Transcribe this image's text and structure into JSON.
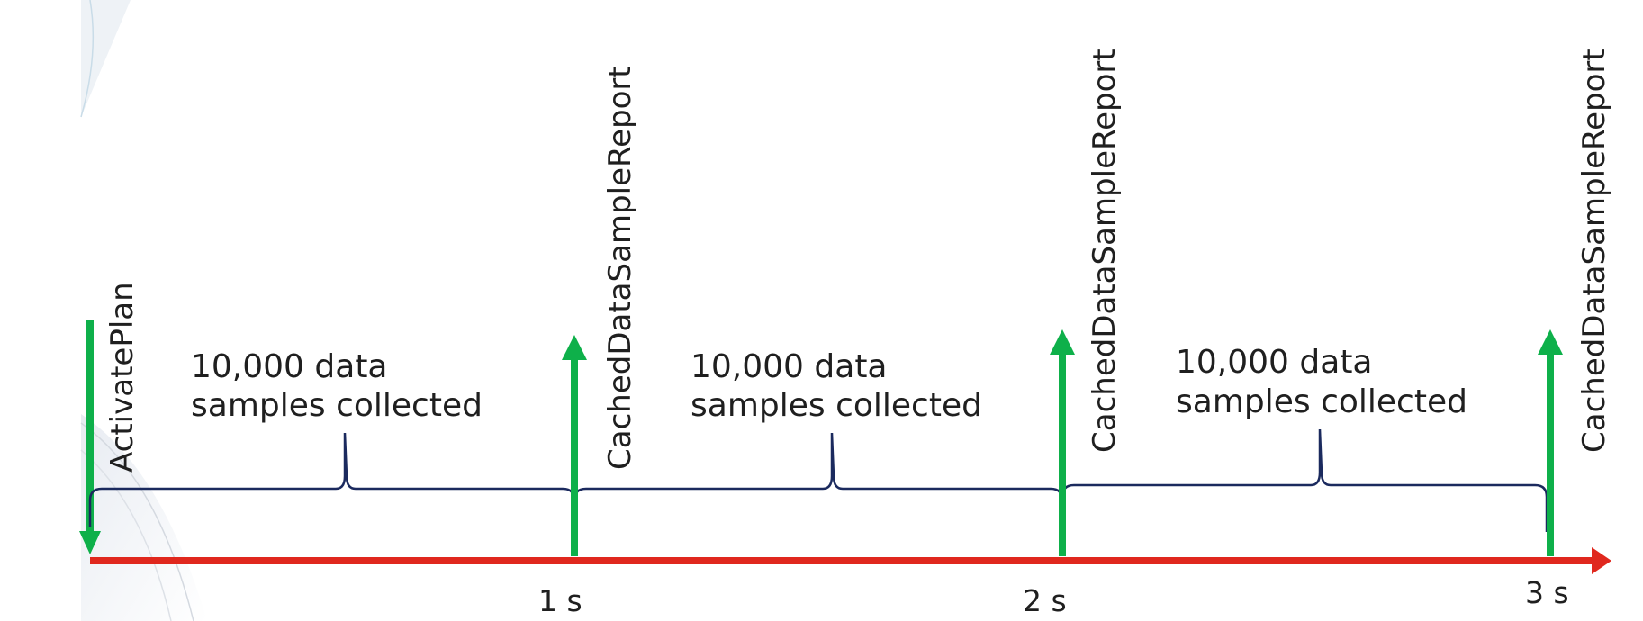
{
  "timeline": {
    "colors": {
      "axis": "#e0281e",
      "event": "#0eb04a",
      "brace": "#1b2a5e"
    },
    "activate_label": "ActivatePlan",
    "ticks": [
      {
        "label": "1 s"
      },
      {
        "label": "2 s"
      },
      {
        "label": "3 s"
      }
    ],
    "reports": [
      {
        "label": "CachedDataSampleReport"
      },
      {
        "label": "CachedDataSampleReport"
      },
      {
        "label": "CachedDataSampleReport"
      }
    ],
    "intervals": [
      {
        "line1": "10,000 data",
        "line2": "samples collected"
      },
      {
        "line1": "10,000 data",
        "line2": "samples collected"
      },
      {
        "line1": "10,000 data",
        "line2": "samples collected"
      }
    ]
  }
}
